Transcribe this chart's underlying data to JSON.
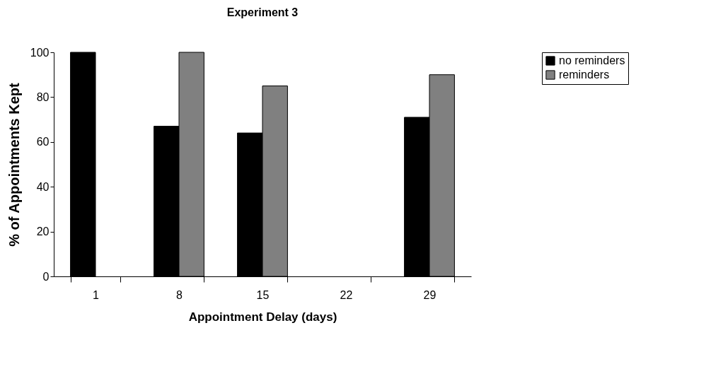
{
  "chart_data": {
    "type": "bar",
    "title": "Experiment 3",
    "xlabel": "Appointment Delay (days)",
    "ylabel": "% of Appointments Kept",
    "categories": [
      "1",
      "8",
      "15",
      "22",
      "29"
    ],
    "series": [
      {
        "name": "no reminders",
        "color": "#000000",
        "values": [
          100,
          67,
          64,
          null,
          71
        ]
      },
      {
        "name": "reminders",
        "color": "#808080",
        "values": [
          null,
          100,
          85,
          null,
          90
        ]
      }
    ],
    "ylim": [
      0,
      100
    ],
    "yticks": [
      0,
      20,
      40,
      60,
      80,
      100
    ],
    "grid": false,
    "legend": "right"
  }
}
